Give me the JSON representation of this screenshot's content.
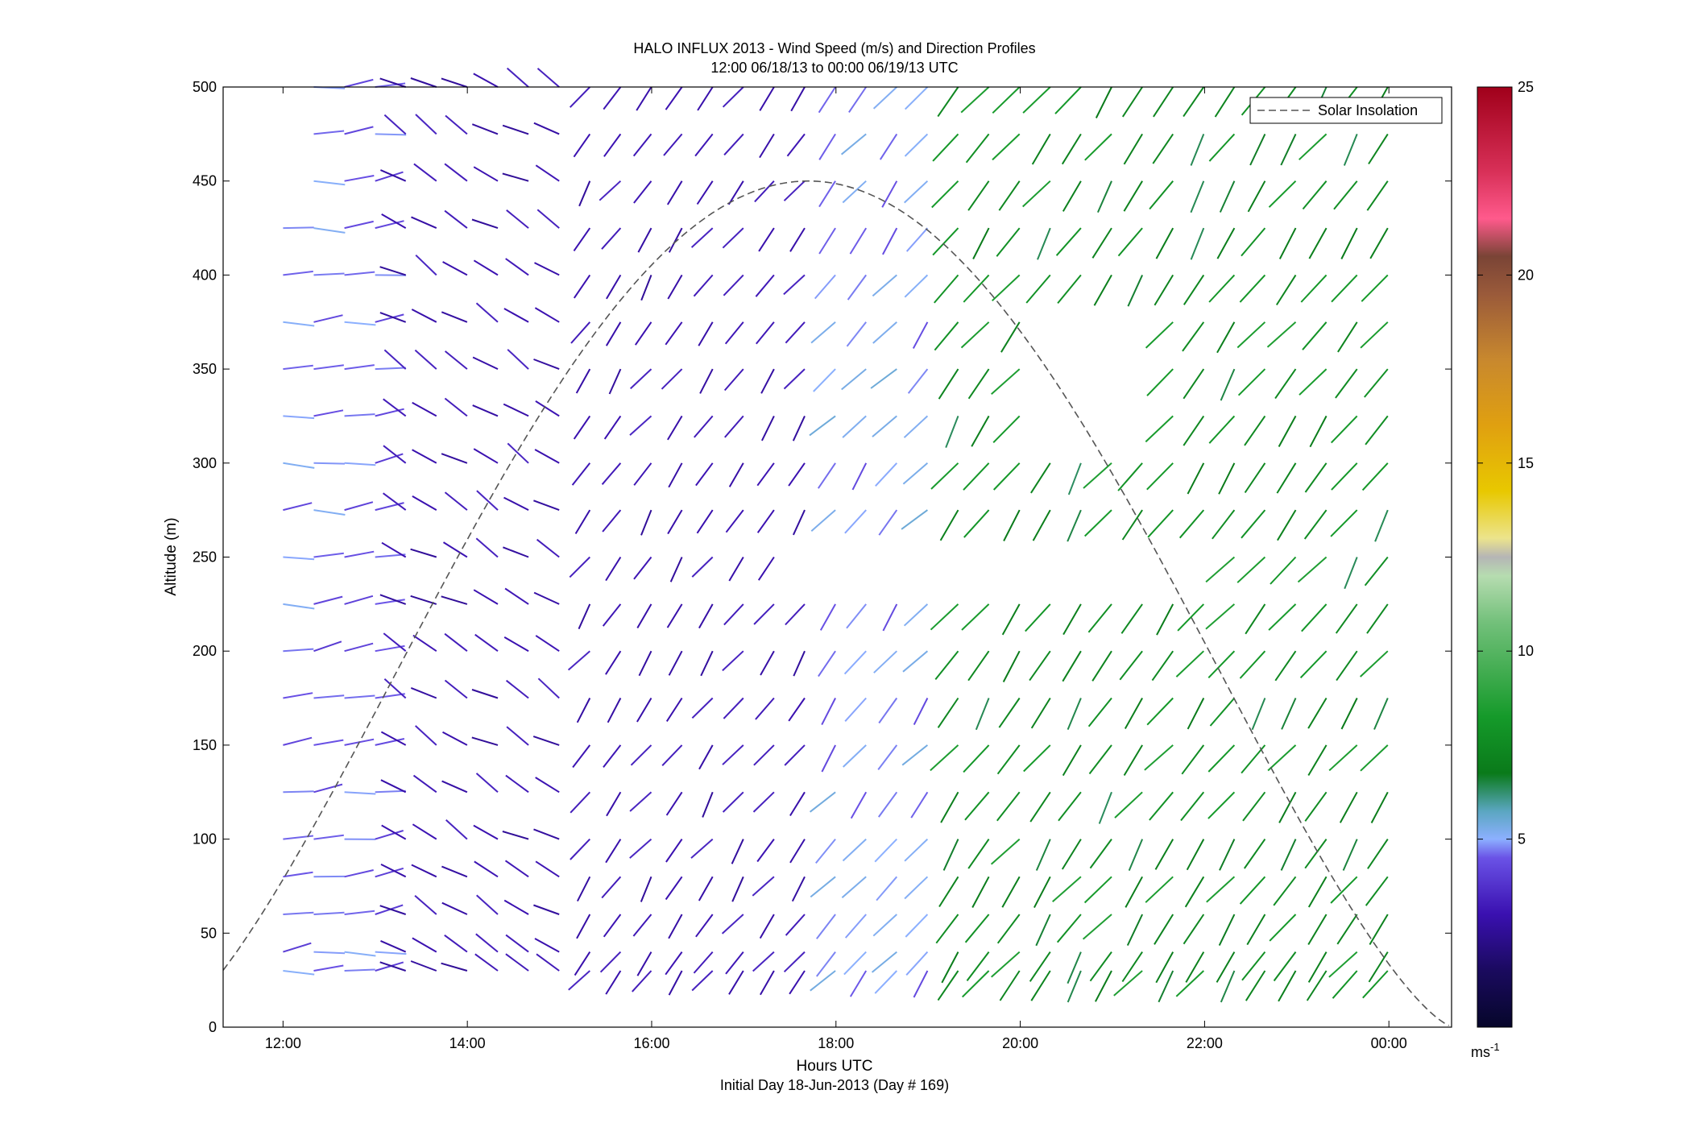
{
  "chart_data": {
    "type": "quiver",
    "title": "HALO INFLUX 2013 - Wind Speed (m/s) and Direction Profiles",
    "subtitle": "12:00 06/18/13 to 00:00 06/19/13  UTC",
    "xlabel": "Hours UTC",
    "xlabel2": "Initial Day 18-Jun-2013 (Day # 169)",
    "ylabel": "Altitude (m)",
    "xlim": [
      11.35,
      24.68
    ],
    "ylim": [
      0,
      500
    ],
    "x_ticks": [
      12,
      14,
      16,
      18,
      20,
      22,
      24
    ],
    "x_tick_labels": [
      "12:00",
      "14:00",
      "16:00",
      "18:00",
      "20:00",
      "22:00",
      "00:00"
    ],
    "y_ticks": [
      0,
      50,
      100,
      150,
      200,
      250,
      300,
      350,
      400,
      450,
      500
    ],
    "y_tick_labels": [
      "0",
      "50",
      "100",
      "150",
      "200",
      "250",
      "300",
      "350",
      "400",
      "450",
      "500"
    ],
    "legend": {
      "label": "Solar Insolation",
      "position": "top-right"
    },
    "colorbar": {
      "min": 0,
      "max": 25,
      "ticks": [
        5,
        10,
        15,
        20,
        25
      ],
      "tick_labels": [
        "5",
        "10",
        "15",
        "20",
        "25"
      ],
      "unit": "ms",
      "unit_exp": "-1"
    },
    "solar_insolation": {
      "peak_hour": 17.7,
      "half_width_hours": 7.0,
      "peak_altitude": 450
    },
    "barbs": {
      "times_start": 12.0,
      "time_step": 0.333,
      "levels": [
        30,
        40,
        60,
        80,
        100,
        125,
        150,
        175,
        200,
        225,
        250,
        275,
        300,
        325,
        350,
        375,
        400,
        425,
        450,
        475,
        500
      ],
      "regimes": [
        {
          "until_hour": 13.3,
          "direction_deg": 85,
          "speed_ms": 4.5,
          "description": "near-horizontal, length increases with speed"
        },
        {
          "until_hour": 15.2,
          "direction_deg": 300,
          "speed_ms": 3.0
        },
        {
          "until_hour": 17.8,
          "direction_deg": 215,
          "speed_ms": 3.0
        },
        {
          "until_hour": 19.2,
          "direction_deg": 220,
          "speed_ms": 4.8
        },
        {
          "until_hour": 24.2,
          "direction_deg": 215,
          "speed_ms": 7.5
        }
      ]
    }
  }
}
